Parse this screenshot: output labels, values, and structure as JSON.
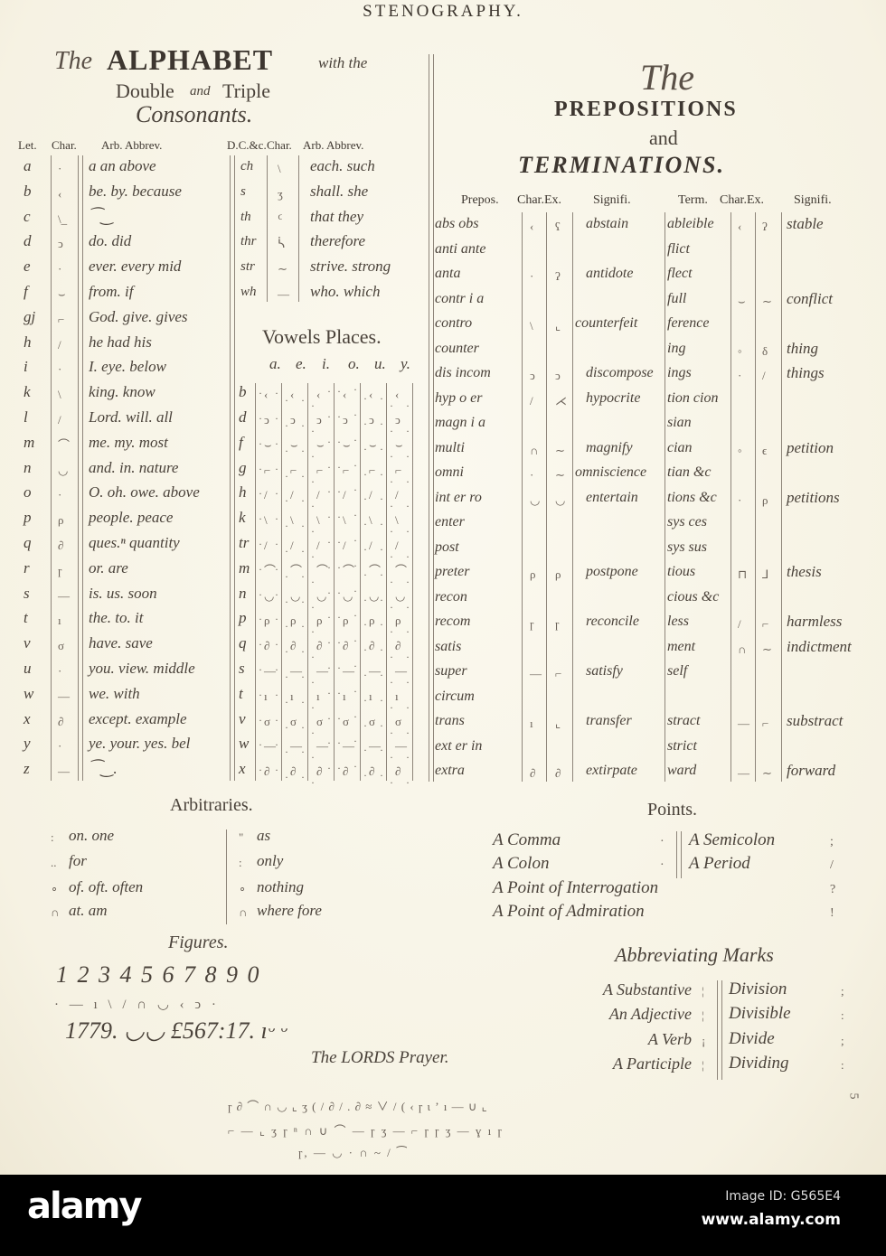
{
  "title": "STENOGRAPHY.",
  "alphabet_section": {
    "title_the": "The",
    "title_alphabet": "ALPHABET",
    "title_with": "with the",
    "title_double": "Double",
    "title_and": "and",
    "title_triple": "Triple",
    "title_consonants": "Consonants.",
    "headers": {
      "let": "Let.",
      "char": "Char.",
      "arb": "Arb. Abbrev.",
      "dc": "D.C.&c.",
      "dc_char": "Char.",
      "dc_arb": "Arb. Abbrev."
    },
    "rows": [
      {
        "let": "a",
        "char": "·",
        "arb": "a an above"
      },
      {
        "let": "b",
        "char": "‹",
        "arb": "be. by. because"
      },
      {
        "let": "c",
        "char": "\\_",
        "arb": "⁀‿"
      },
      {
        "let": "d",
        "char": "ↄ",
        "arb": "do. did"
      },
      {
        "let": "e",
        "char": "·",
        "arb": "ever. every mid"
      },
      {
        "let": "f",
        "char": "⌣",
        "arb": "from. if"
      },
      {
        "let": "gj",
        "char": "⌐",
        "arb": "God. give. gives"
      },
      {
        "let": "h",
        "char": "/",
        "arb": "he had his"
      },
      {
        "let": "i",
        "char": "·",
        "arb": "I. eye. below"
      },
      {
        "let": "k",
        "char": "\\",
        "arb": "king. know"
      },
      {
        "let": "l",
        "char": "/",
        "arb": "Lord. will. all"
      },
      {
        "let": "m",
        "char": "⌒",
        "arb": "me. my. most"
      },
      {
        "let": "n",
        "char": "◡",
        "arb": "and. in. nature"
      },
      {
        "let": "o",
        "char": "·",
        "arb": "O. oh. owe. above"
      },
      {
        "let": "p",
        "char": "ρ",
        "arb": "people. peace"
      },
      {
        "let": "q",
        "char": "∂",
        "arb": "ques.ⁿ quantity"
      },
      {
        "let": "r",
        "char": "ɼ",
        "arb": "or. are"
      },
      {
        "let": "s",
        "char": "—",
        "arb": "is. us. soon"
      },
      {
        "let": "t",
        "char": "ı",
        "arb": "the. to. it"
      },
      {
        "let": "v",
        "char": "σ",
        "arb": "have. save"
      },
      {
        "let": "u",
        "char": "·",
        "arb": "you. view. middle"
      },
      {
        "let": "w",
        "char": "—",
        "arb": "we. with"
      },
      {
        "let": "x",
        "char": "∂",
        "arb": "except. example"
      },
      {
        "let": "y",
        "char": "·",
        "arb": "ye. your. yes. bel"
      },
      {
        "let": "z",
        "char": "—",
        "arb": "⁀‿."
      }
    ],
    "double_consonants": [
      {
        "dc": "ch",
        "char": "\\",
        "arb": "each. such"
      },
      {
        "dc": "s",
        "char": "ʒ",
        "arb": "shall. she"
      },
      {
        "dc": "th",
        "char": "ᑦ",
        "arb": "that they"
      },
      {
        "dc": "thr",
        "char": "ᓵ",
        "arb": "therefore"
      },
      {
        "dc": "str",
        "char": "∼",
        "arb": "strive. strong"
      },
      {
        "dc": "wh",
        "char": "—",
        "arb": "who. which"
      }
    ]
  },
  "vowels": {
    "title": "Vowels Places.",
    "headers": [
      "a.",
      "e.",
      "i.",
      "o.",
      "u.",
      "y."
    ],
    "rows": [
      {
        "cons": "b",
        "shape": "‹"
      },
      {
        "cons": "d",
        "shape": "ↄ"
      },
      {
        "cons": "f",
        "shape": "⌣"
      },
      {
        "cons": "g",
        "shape": "⌐"
      },
      {
        "cons": "h",
        "shape": "/"
      },
      {
        "cons": "k",
        "shape": "\\"
      },
      {
        "cons": "tr",
        "shape": "/"
      },
      {
        "cons": "m",
        "shape": "⌒"
      },
      {
        "cons": "n",
        "shape": "◡"
      },
      {
        "cons": "p",
        "shape": "ρ"
      },
      {
        "cons": "q",
        "shape": "∂"
      },
      {
        "cons": "s",
        "shape": "—"
      },
      {
        "cons": "t",
        "shape": "ı"
      },
      {
        "cons": "v",
        "shape": "σ"
      },
      {
        "cons": "w",
        "shape": "—"
      },
      {
        "cons": "x",
        "shape": "∂"
      }
    ]
  },
  "prepositions_section": {
    "title_the": "The",
    "title_prepositions": "PREPOSITIONS",
    "title_and": "and",
    "title_terminations": "TERMINATIONS.",
    "headers": {
      "prepos": "Prepos.",
      "char_ex": "Char.Ex.",
      "signifi": "Signifi.",
      "term": "Term.",
      "t_char_ex": "Char.Ex.",
      "t_signifi": "Signifi."
    },
    "rows": [
      {
        "prepos": "abs obs",
        "char": "‹",
        "ex": "ʕ",
        "signifi": "abstain",
        "term": "ableible",
        "tchar": "‹",
        "tex": "ʔ",
        "tsignifi": "stable"
      },
      {
        "prepos": "anti ante",
        "term": "flict"
      },
      {
        "prepos": "anta",
        "char": "·",
        "ex": "ʔ",
        "signifi": "antidote",
        "term": "flect"
      },
      {
        "prepos": "contr i a",
        "term": "full",
        "tchar": "⌣",
        "tex": "∼",
        "tsignifi": "conflict"
      },
      {
        "prepos": "contro",
        "char": "\\",
        "ex": "⌞",
        "signifi": "counterfeit",
        "term": "ference"
      },
      {
        "prepos": "counter",
        "term": "ing",
        "tchar": "◦",
        "tex": "δ",
        "tsignifi": "thing"
      },
      {
        "prepos": "dis incom",
        "char": "ↄ",
        "ex": "ↄ",
        "signifi": "discompose",
        "term": "ings",
        "tchar": "·",
        "tex": "/",
        "tsignifi": "things"
      },
      {
        "prepos": "hyp o er",
        "char": "/",
        "ex": "⋌",
        "signifi": "hypocrite",
        "term": "tion cion"
      },
      {
        "prepos": "magn i a",
        "term": "sian"
      },
      {
        "prepos": "multi",
        "char": "∩",
        "ex": "∼",
        "signifi": "magnify",
        "term": "cian",
        "tchar": "◦",
        "tex": "ϵ",
        "tsignifi": "petition"
      },
      {
        "prepos": "omni",
        "char": "·",
        "ex": "∼",
        "signifi": "omniscience",
        "term": "tian &c"
      },
      {
        "prepos": "int er ro",
        "char": "◡",
        "ex": "◡",
        "signifi": "entertain",
        "term": "tions &c",
        "tchar": "·",
        "tex": "ρ",
        "tsignifi": "petitions"
      },
      {
        "prepos": "enter",
        "term": "sys ces"
      },
      {
        "prepos": "post",
        "term": "sys sus"
      },
      {
        "prepos": "preter",
        "char": "ρ",
        "ex": "ρ",
        "signifi": "postpone",
        "term": "tious",
        "tchar": "⊓",
        "tex": "⅃",
        "tsignifi": "thesis"
      },
      {
        "prepos": "recon",
        "term": "cious &c"
      },
      {
        "prepos": "recom",
        "char": "ɼ",
        "ex": "ɼ",
        "signifi": "reconcile",
        "term": "less",
        "tchar": "/",
        "tex": "⌐",
        "tsignifi": "harmless"
      },
      {
        "prepos": "satis",
        "term": "ment",
        "tchar": "∩",
        "tex": "∼",
        "tsignifi": "indictment"
      },
      {
        "prepos": "super",
        "char": "—",
        "ex": "⌐",
        "signifi": "satisfy",
        "term": "self"
      },
      {
        "prepos": "circum"
      },
      {
        "prepos": "trans",
        "char": "ı",
        "ex": "⌞",
        "signifi": "transfer",
        "term": "stract",
        "tchar": "—",
        "tex": "⌐",
        "tsignifi": "substract"
      },
      {
        "prepos": "ext er in",
        "term": "strict"
      },
      {
        "prepos": "extra",
        "char": "∂",
        "ex": "∂",
        "signifi": "extirpate",
        "term": "ward",
        "tchar": "—",
        "tex": "∼",
        "tsignifi": "forward"
      }
    ]
  },
  "arbitraries": {
    "title": "Arbitraries.",
    "left": [
      {
        "mark": ":",
        "text": "on. one"
      },
      {
        "mark": "..",
        "text": "for"
      },
      {
        "mark": "∘",
        "text": "of. oft. often"
      },
      {
        "mark": "∩",
        "text": "at. am"
      }
    ],
    "right": [
      {
        "mark": "\"",
        "text": "as"
      },
      {
        "mark": ":",
        "text": "only"
      },
      {
        "mark": "∘",
        "text": "nothing"
      },
      {
        "mark": "∩",
        "text": "where fore"
      }
    ]
  },
  "figures": {
    "title": "Figures.",
    "digits": "1 2 3 4 5 6 7 8 9 0",
    "marks": "·  —  ı  \\  /  ∩  ◡  ‹  ↄ  ·",
    "example": "1779. ◡◡ £567:17.  ıᵕ  ᵕ"
  },
  "lords_prayer": {
    "title": "The LORDS Prayer.",
    "lines": [
      "ɼ ∂ ⌒ ∩ ◡ ⌞ ʒ ( / ∂ / . ∂ ≈ ∨ / ( ‹ ɼ ι ʼ ı — ∪ ⌞",
      "⌐ — ⌞ ʒ ɼ ⁿ ∩ ∪ ⌒ — ɼ ʒ — ⌐ ɼ ɼ ʒ — ɣ ı ɼ",
      "ɼ, — ◡ · ∩ ~ / ⁀"
    ]
  },
  "points": {
    "title": "Points.",
    "items": [
      {
        "label": "A Comma",
        "mark": "·"
      },
      {
        "label": "A Semicolon",
        "mark": ";"
      },
      {
        "label": "A Colon",
        "mark": "·"
      },
      {
        "label": "A Period",
        "mark": "/"
      },
      {
        "label": "A Point of Interrogation",
        "mark": "?"
      },
      {
        "label": "A Point of Admiration",
        "mark": "!"
      }
    ]
  },
  "abbreviating_marks": {
    "title": "Abbreviating Marks",
    "left": [
      {
        "label": "A Substantive",
        "mark": "¦"
      },
      {
        "label": "An Adjective",
        "mark": "¦"
      },
      {
        "label": "A Verb",
        "mark": "¡"
      },
      {
        "label": "A Participle",
        "mark": "¦"
      }
    ],
    "right": [
      {
        "label": "Division",
        "mark": ";"
      },
      {
        "label": "Divisible",
        "mark": ":"
      },
      {
        "label": "Divide",
        "mark": ";"
      },
      {
        "label": "Dividing",
        "mark": ":"
      }
    ]
  },
  "plate_number": "5",
  "watermark": {
    "logo": "alamy",
    "image_id": "Image ID: G565E4",
    "url": "www.alamy.com"
  },
  "colors": {
    "paper": "#f8f5e9",
    "ink": "#4a423a",
    "bar": "#000000"
  }
}
